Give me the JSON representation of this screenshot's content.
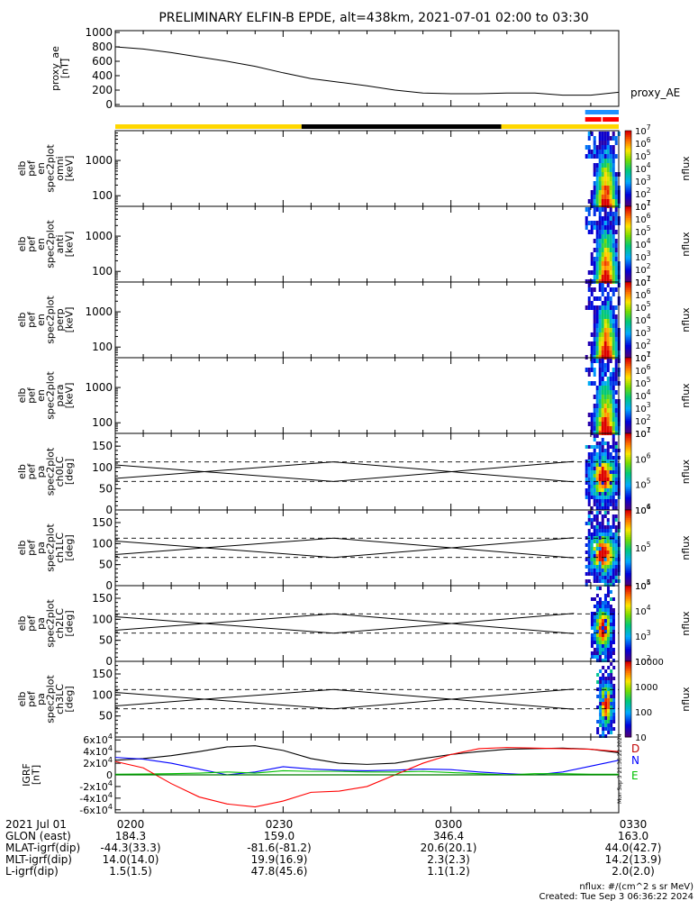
{
  "title": "PRELIMINARY ELFIN-B EPDE, alt=438km, 2021-07-01 02:00 to 03:30",
  "footer": {
    "units": "nflux: #/(cm^2 s sr MeV)",
    "created": "Created: Tue Sep  3 06:36:22 2024"
  },
  "vertical_stamp": "Mon Sep  3 21:36:22 2024",
  "ephemeris": {
    "labels": [
      "2021 Jul 01",
      "GLON (east)",
      "MLAT-igrf(dip)",
      "MLT-igrf(dip)",
      "L-igrf(dip)"
    ],
    "columns": [
      [
        "0200",
        "184.3",
        "-44.3(33.3)",
        "14.0(14.0)",
        "1.5(1.5)"
      ],
      [
        "0230",
        "159.0",
        "-81.6(-81.2)",
        "19.9(16.9)",
        "47.8(45.6)"
      ],
      [
        "0300",
        "346.4",
        "20.6(20.1)",
        "2.3(2.3)",
        "1.1(1.2)"
      ],
      [
        "0330",
        "163.0",
        "44.0(42.7)",
        "14.2(13.9)",
        "2.0(2.0)"
      ]
    ]
  },
  "chart_data": [
    {
      "type": "line",
      "panel": "proxy_ae",
      "ylabel": "proxy_ae [nT]",
      "series_label": "proxy_AE",
      "ylim": [
        0,
        1000
      ],
      "yticks": [
        "0",
        "200",
        "400",
        "600",
        "800",
        "1000"
      ],
      "x": [
        0,
        5,
        10,
        15,
        20,
        25,
        30,
        35,
        40,
        45,
        50,
        55,
        60,
        65,
        70,
        75,
        80,
        85,
        90
      ],
      "values": [
        800,
        770,
        720,
        660,
        600,
        530,
        440,
        360,
        310,
        260,
        200,
        160,
        150,
        150,
        160,
        160,
        130,
        130,
        170
      ]
    },
    {
      "type": "bar",
      "panel": "orbit_indicator",
      "segments": [
        {
          "from": 0,
          "to": 33.3,
          "color": "#ffd700"
        },
        {
          "from": 33.3,
          "to": 69,
          "color": "#000000"
        },
        {
          "from": 69,
          "to": 90,
          "color": "#ffd700"
        }
      ],
      "markers": [
        {
          "from": 84,
          "to": 90,
          "color": "#1e90ff"
        },
        {
          "from": 84,
          "to": 90,
          "color": "#ff0000"
        }
      ]
    },
    {
      "type": "heatmap",
      "panel": "spec_omni",
      "ylabel": "elb pef en spec2plot omni [keV]",
      "yticks": [
        "100",
        "1000"
      ],
      "zlabel": "nflux",
      "zticks": [
        "10^1",
        "10^2",
        "10^3",
        "10^4",
        "10^5",
        "10^6",
        "10^7"
      ],
      "active_x": [
        84,
        90
      ],
      "peak_x": 87.5
    },
    {
      "type": "heatmap",
      "panel": "spec_anti",
      "ylabel": "elb pef en spec2plot anti [keV]",
      "yticks": [
        "100",
        "1000"
      ],
      "zlabel": "nflux",
      "zticks": [
        "10^1",
        "10^2",
        "10^3",
        "10^4",
        "10^5",
        "10^6",
        "10^7"
      ],
      "active_x": [
        84,
        90
      ],
      "peak_x": 87.5
    },
    {
      "type": "heatmap",
      "panel": "spec_perp",
      "ylabel": "elb pef en spec2plot perp [keV]",
      "yticks": [
        "100",
        "1000"
      ],
      "zlabel": "nflux",
      "zticks": [
        "10^1",
        "10^2",
        "10^3",
        "10^4",
        "10^5",
        "10^6",
        "10^7"
      ],
      "active_x": [
        84,
        90
      ],
      "peak_x": 87.5
    },
    {
      "type": "heatmap",
      "panel": "spec_para",
      "ylabel": "elb pef en spec2plot para [keV]",
      "yticks": [
        "100",
        "1000"
      ],
      "zlabel": "nflux",
      "zticks": [
        "10^1",
        "10^2",
        "10^3",
        "10^4",
        "10^5",
        "10^6",
        "10^7"
      ],
      "active_x": [
        84,
        90
      ],
      "peak_x": 87.5
    },
    {
      "type": "heatmap",
      "panel": "pa_ch0",
      "ylabel": "elb pef pa spec2plot ch0LC [deg]",
      "yticks": [
        "0",
        "50",
        "100",
        "150"
      ],
      "ylim": [
        0,
        180
      ],
      "zlabel": "nflux",
      "zticks": [
        "10^4",
        "10^5",
        "10^6",
        "10^7"
      ],
      "dashed_lines": [
        67,
        113
      ],
      "loss_cone": {
        "x": [
          0,
          39,
          82
        ],
        "y": [
          74,
          113,
          66
        ]
      },
      "active_x": [
        84,
        90
      ]
    },
    {
      "type": "heatmap",
      "panel": "pa_ch1",
      "ylabel": "elb pef pa spec2plot ch1LC [deg]",
      "yticks": [
        "0",
        "50",
        "100",
        "150"
      ],
      "ylim": [
        0,
        180
      ],
      "zlabel": "nflux",
      "zticks": [
        "10^4",
        "10^5",
        "10^6"
      ],
      "dashed_lines": [
        67,
        113
      ],
      "loss_cone": {
        "x": [
          0,
          39,
          82
        ],
        "y": [
          74,
          113,
          66
        ]
      },
      "active_x": [
        84,
        90
      ]
    },
    {
      "type": "heatmap",
      "panel": "pa_ch2",
      "ylabel": "elb pef pa spec2plot ch2LC [deg]",
      "yticks": [
        "0",
        "50",
        "100",
        "150"
      ],
      "ylim": [
        0,
        180
      ],
      "zlabel": "nflux",
      "zticks": [
        "10^2",
        "10^3",
        "10^4",
        "10^5"
      ],
      "dashed_lines": [
        67,
        113
      ],
      "loss_cone": {
        "x": [
          0,
          39,
          82
        ],
        "y": [
          74,
          113,
          66
        ]
      },
      "active_x": [
        85,
        89
      ]
    },
    {
      "type": "heatmap",
      "panel": "pa_ch3",
      "ylabel": "elb pef pa spec2plot ch3LC [deg]",
      "yticks": [
        "50",
        "100",
        "150"
      ],
      "ylim": [
        0,
        180
      ],
      "zlabel": "nflux",
      "zticks": [
        "10",
        "100",
        "1000",
        "10000"
      ],
      "dashed_lines": [
        67,
        113
      ],
      "loss_cone": {
        "x": [
          0,
          39,
          82
        ],
        "y": [
          74,
          113,
          66
        ]
      },
      "active_x": [
        86,
        89
      ]
    },
    {
      "type": "line",
      "panel": "igrf",
      "ylabel": "IGRF [nT]",
      "ylim": [
        -65000,
        65000
      ],
      "yticks": [
        "-6x10^4",
        "-4x10^4",
        "-2x10^4",
        "0",
        "2x10^4",
        "4x10^4",
        "6x10^4"
      ],
      "x": [
        0,
        5,
        10,
        15,
        20,
        25,
        30,
        35,
        40,
        45,
        50,
        55,
        60,
        65,
        70,
        75,
        80,
        85,
        90
      ],
      "series": [
        {
          "name": "D",
          "color": "#000000",
          "values": [
            25000,
            28000,
            33000,
            40000,
            48000,
            50000,
            42000,
            28000,
            20000,
            18000,
            20000,
            28000,
            35000,
            40000,
            44000,
            45000,
            46000,
            44000,
            38000
          ]
        },
        {
          "name": "N",
          "color": "#0000ff",
          "values": [
            30000,
            27000,
            20000,
            10000,
            0,
            5000,
            14000,
            10000,
            8000,
            7000,
            8000,
            10000,
            9000,
            5000,
            2000,
            0,
            5000,
            15000,
            25000
          ]
        },
        {
          "name": "E",
          "color": "#00c000",
          "values": [
            1000,
            1500,
            2000,
            3000,
            5000,
            3000,
            7000,
            6000,
            6000,
            5000,
            5000,
            6000,
            4000,
            2000,
            0,
            2000,
            2000,
            1000,
            1000
          ]
        },
        {
          "name": "",
          "color": "#ff0000",
          "values": [
            23000,
            12000,
            -15000,
            -38000,
            -50000,
            -55000,
            -45000,
            -30000,
            -28000,
            -20000,
            0,
            20000,
            35000,
            45000,
            47000,
            46000,
            45000,
            44000,
            40000
          ]
        }
      ]
    }
  ]
}
